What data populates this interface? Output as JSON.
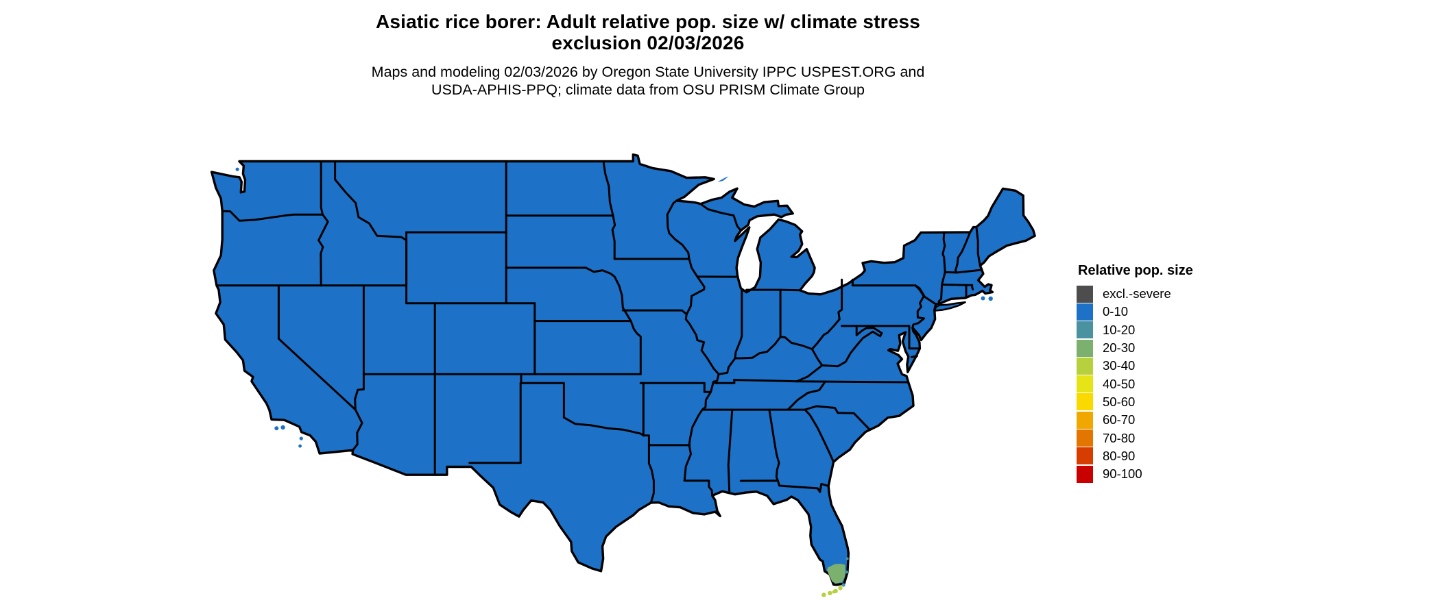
{
  "figure": {
    "title_line1": "Asiatic rice borer: Adult relative pop. size w/ climate stress",
    "title_line2": "exclusion 02/03/2026",
    "subtitle_line1": "Maps and modeling 02/03/2026 by Oregon State University IPPC USPEST.ORG and",
    "subtitle_line2": "USDA-APHIS-PPQ; climate data from OSU PRISM Climate Group"
  },
  "legend": {
    "title": "Relative pop. size",
    "items": [
      {
        "id": "excl",
        "label": "excl.-severe",
        "color": "#4d4d4d"
      },
      {
        "id": "b0",
        "label": "0-10",
        "color": "#1d72c8"
      },
      {
        "id": "b10",
        "label": "10-20",
        "color": "#4a92a0"
      },
      {
        "id": "b20",
        "label": "20-30",
        "color": "#7cb06e"
      },
      {
        "id": "b30",
        "label": "30-40",
        "color": "#b6d03e"
      },
      {
        "id": "b40",
        "label": "40-50",
        "color": "#e6e416"
      },
      {
        "id": "b50",
        "label": "50-60",
        "color": "#f9d900"
      },
      {
        "id": "b60",
        "label": "60-70",
        "color": "#f0a800"
      },
      {
        "id": "b70",
        "label": "70-80",
        "color": "#e27600"
      },
      {
        "id": "b80",
        "label": "80-90",
        "color": "#d73c00"
      },
      {
        "id": "b90",
        "label": "90-100",
        "color": "#c90000"
      }
    ]
  },
  "map": {
    "background": "#ffffff",
    "border_color": "#000000",
    "regions": [
      {
        "name": "conus-land",
        "bin": "b0"
      },
      {
        "name": "south-florida",
        "bin": "b20"
      },
      {
        "name": "florida-keys",
        "bin": "b30"
      },
      {
        "name": "florida-coast-spots",
        "bin": "b10"
      }
    ]
  },
  "chart_data": {
    "type": "heatmap",
    "subtype": "choropleth-risk-map",
    "title": "Asiatic rice borer: Adult relative pop. size w/ climate stress exclusion 02/03/2026",
    "legend_title": "Relative pop. size",
    "bins": [
      "excl.-severe",
      "0-10",
      "10-20",
      "20-30",
      "30-40",
      "40-50",
      "50-60",
      "60-70",
      "70-80",
      "80-90",
      "90-100"
    ],
    "bin_colors": [
      "#4d4d4d",
      "#1d72c8",
      "#4a92a0",
      "#7cb06e",
      "#b6d03e",
      "#e6e416",
      "#f9d900",
      "#f0a800",
      "#e27600",
      "#d73c00",
      "#c90000"
    ],
    "region_values": [
      {
        "region": "contiguous US (nearly all states)",
        "value_bin": "0-10"
      },
      {
        "region": "southern tip of Florida (Everglades area)",
        "value_bin": "20-30"
      },
      {
        "region": "Florida Keys",
        "value_bin": "30-40"
      },
      {
        "region": "scattered south Florida coastal pixels",
        "value_bin": "10-20"
      }
    ],
    "legend_position": "right"
  }
}
